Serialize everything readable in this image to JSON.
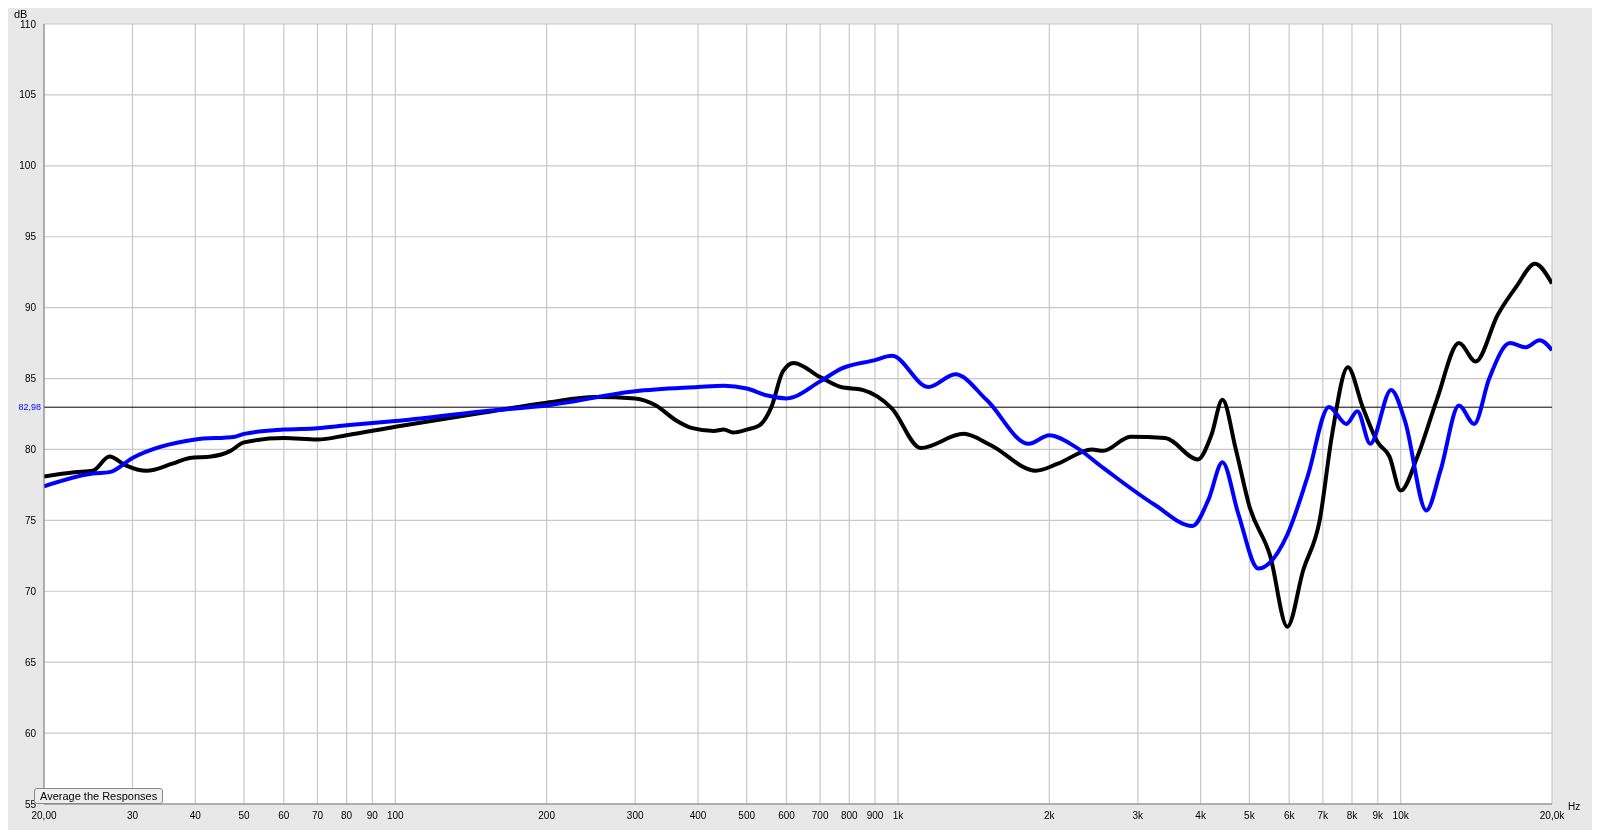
{
  "chart_data": {
    "type": "line",
    "ylabel": "dB",
    "xlim": [
      20,
      20000
    ],
    "log": "x",
    "xticks": [
      {
        "value": 20,
        "label": "20,00"
      },
      30,
      40,
      50,
      60,
      70,
      80,
      90,
      100,
      200,
      300,
      400,
      500,
      600,
      700,
      800,
      900,
      {
        "value": 1000,
        "label": "1k"
      },
      {
        "value": 2000,
        "label": "2k"
      },
      {
        "value": 3000,
        "label": "3k"
      },
      {
        "value": 4000,
        "label": "4k"
      },
      {
        "value": 5000,
        "label": "5k"
      },
      {
        "value": 6000,
        "label": "6k"
      },
      {
        "value": 7000,
        "label": "7k"
      },
      {
        "value": 8000,
        "label": "8k"
      },
      {
        "value": 9000,
        "label": "9k"
      },
      {
        "value": 10000,
        "label": "10k"
      },
      {
        "value": 20000,
        "label": "20,0k"
      }
    ],
    "xlabel": "Hz",
    "ylim": [
      55,
      110
    ],
    "yticks": [
      55,
      60,
      65,
      70,
      75,
      80,
      85,
      90,
      95,
      100,
      105,
      110
    ],
    "grid": true,
    "line_style": "solid",
    "ref_lines": [
      {
        "axis": "y",
        "value": 82.98,
        "label": "82,98",
        "color": "#000000"
      }
    ],
    "annotations": [
      "Average the Responses"
    ],
    "series": [
      {
        "color": "#000000",
        "x": [
          20,
          23,
          25,
          27,
          29,
          32,
          36,
          39,
          43,
          47,
          50,
          60,
          70,
          80,
          100,
          150,
          200,
          250,
          300,
          330,
          360,
          390,
          430,
          450,
          470,
          500,
          530,
          560,
          590,
          620,
          700,
          770,
          850,
          972,
          1110,
          1350,
          1530,
          1880,
          2080,
          2430,
          2560,
          2900,
          3400,
          3950,
          4200,
          4420,
          4700,
          5000,
          5500,
          5950,
          6400,
          6900,
          7300,
          7850,
          8400,
          9000,
          9500,
          10000,
          10800,
          11800,
          13060,
          14100,
          15600,
          17000,
          18500,
          20000
        ],
        "values": [
          78.1,
          78.4,
          78.5,
          79.5,
          78.9,
          78.5,
          79.0,
          79.4,
          79.5,
          79.9,
          80.5,
          80.8,
          80.7,
          81.0,
          81.6,
          82.6,
          83.3,
          83.7,
          83.6,
          83.1,
          82.1,
          81.5,
          81.3,
          81.4,
          81.2,
          81.4,
          81.7,
          83.0,
          85.5,
          86.1,
          85.1,
          84.4,
          84.2,
          82.9,
          80.1,
          81.1,
          80.3,
          78.5,
          79.0,
          80.0,
          79.9,
          80.9,
          80.8,
          79.3,
          81.0,
          83.5,
          80.0,
          76.0,
          72.5,
          67.5,
          71.5,
          75.0,
          81.0,
          85.8,
          83.0,
          80.5,
          79.5,
          77.1,
          79.5,
          83.5,
          87.5,
          86.2,
          89.5,
          91.5,
          93.1,
          91.7
        ]
      },
      {
        "color": "#0000ff",
        "x": [
          20,
          25,
          27,
          30,
          40,
          48,
          50,
          60,
          70,
          80,
          100,
          150,
          200,
          300,
          400,
          450,
          500,
          550,
          600,
          700,
          771,
          900,
          972,
          1150,
          1300,
          1500,
          1820,
          2000,
          2250,
          2560,
          3240,
          3850,
          4150,
          4420,
          4750,
          5210,
          5950,
          6530,
          7200,
          7800,
          8200,
          8700,
          9570,
          10200,
          11250,
          12000,
          13060,
          14000,
          15000,
          16500,
          17700,
          18900,
          20000
        ],
        "values": [
          77.4,
          78.3,
          78.4,
          79.4,
          80.7,
          80.9,
          81.1,
          81.4,
          81.5,
          81.7,
          82.0,
          82.7,
          83.1,
          84.1,
          84.4,
          84.5,
          84.3,
          83.8,
          83.6,
          84.8,
          85.7,
          86.3,
          86.6,
          84.4,
          85.3,
          83.5,
          80.4,
          81.0,
          80.2,
          78.7,
          76.1,
          74.6,
          76.5,
          79.1,
          75.5,
          71.6,
          74.0,
          78.1,
          83.0,
          81.8,
          82.7,
          80.4,
          84.2,
          82.0,
          75.7,
          78.5,
          83.1,
          81.8,
          85.0,
          87.5,
          87.2,
          87.7,
          87.0
        ]
      }
    ]
  }
}
